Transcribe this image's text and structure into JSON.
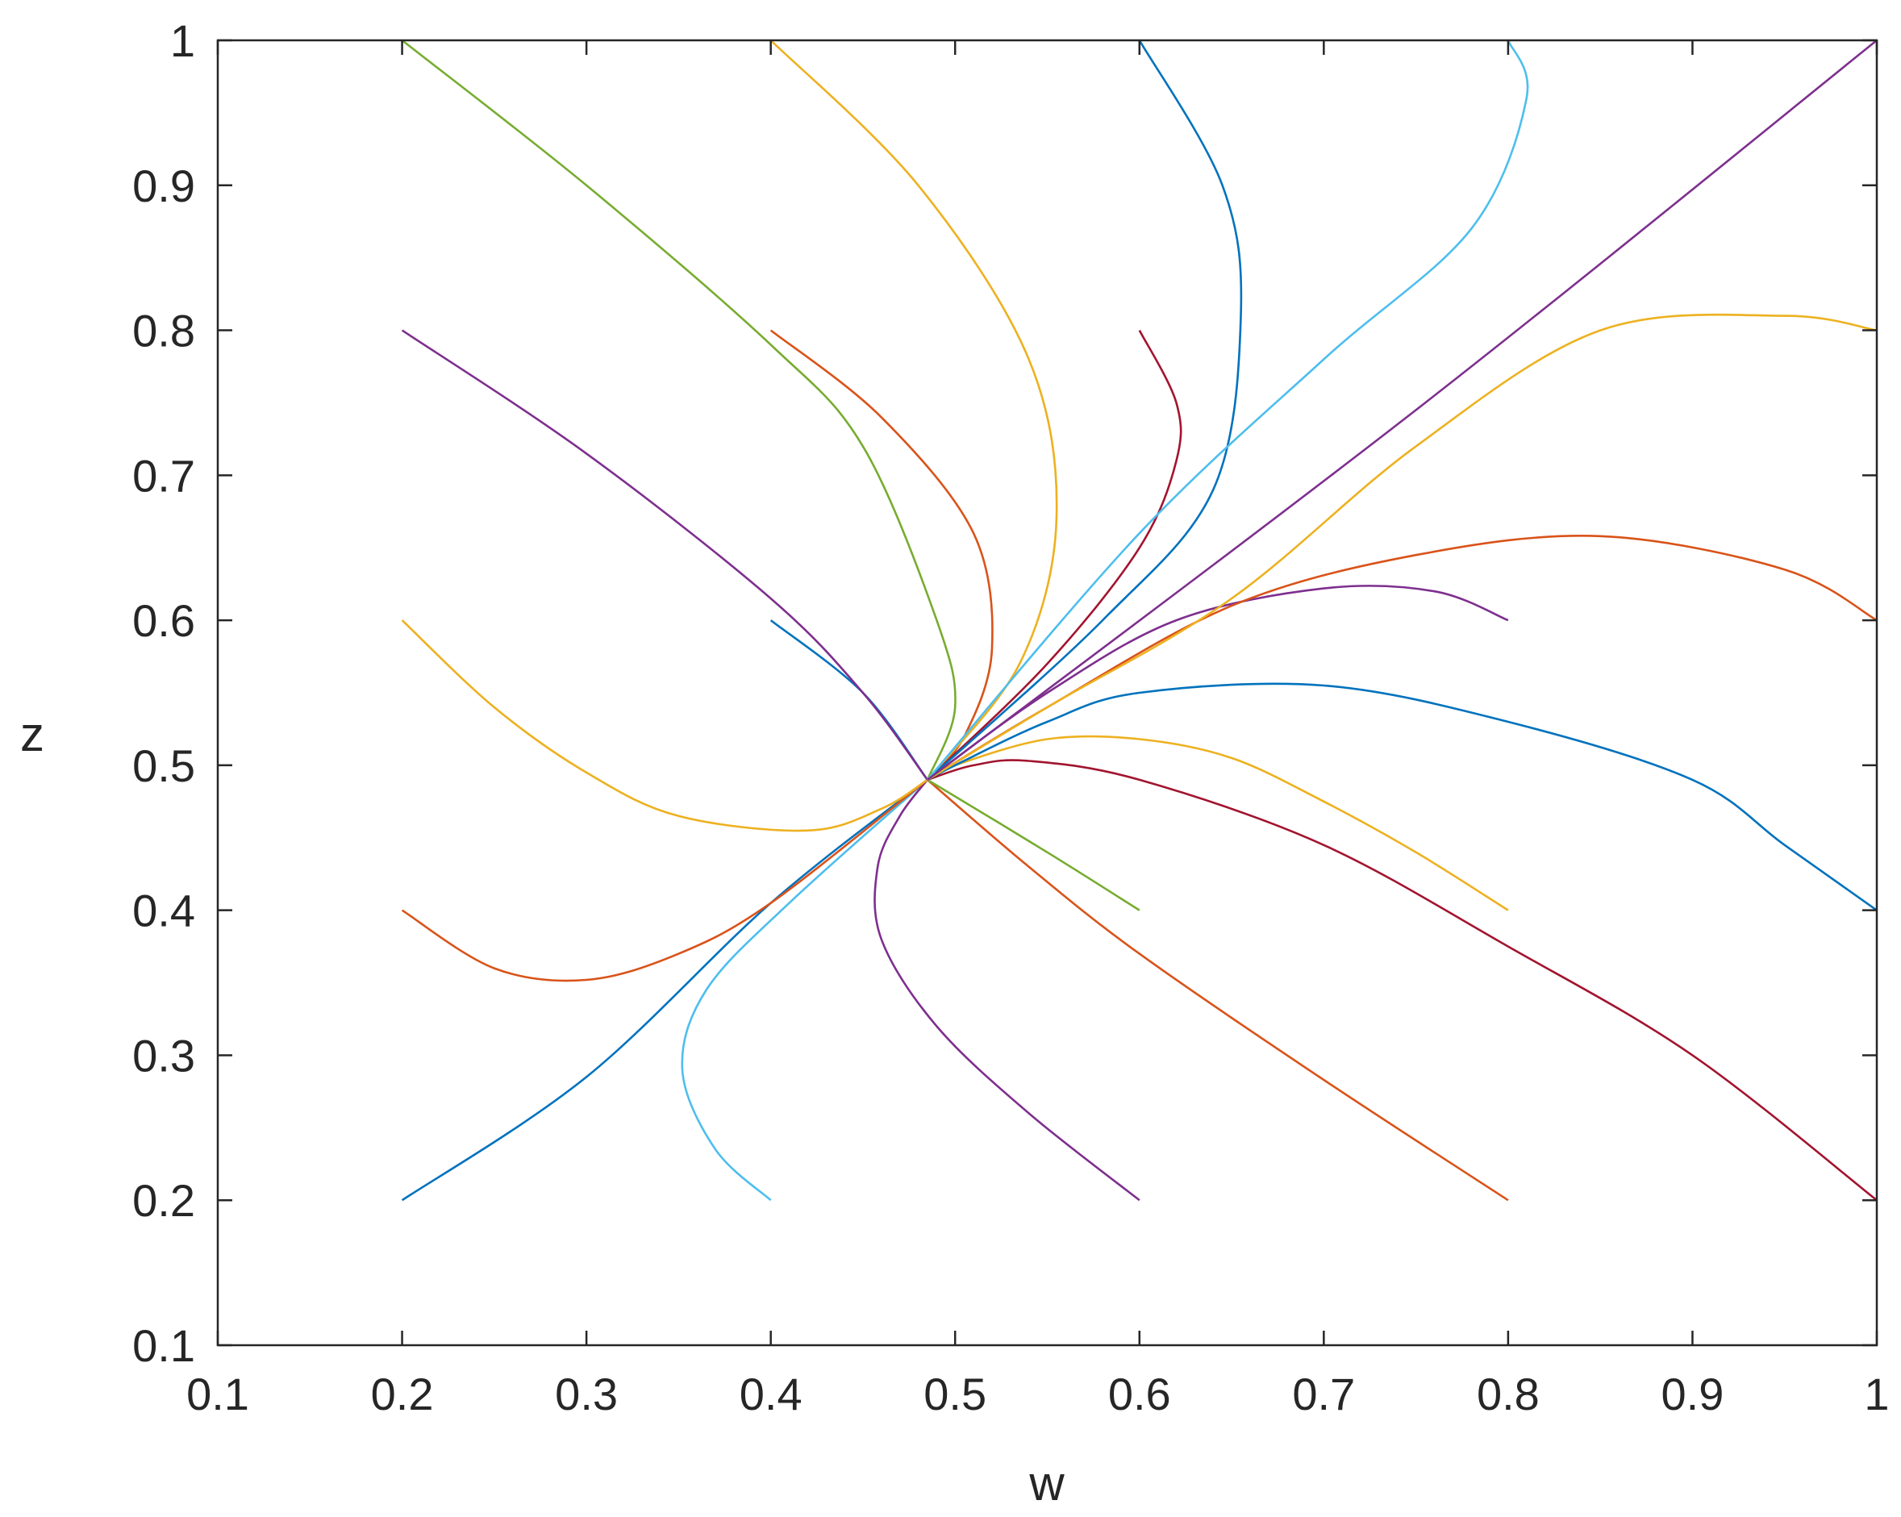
{
  "chart_data": {
    "type": "line",
    "title": "",
    "xlabel": "w",
    "ylabel": "z",
    "xlim": [
      0.1,
      1
    ],
    "ylim": [
      0.1,
      1
    ],
    "xticks": [
      "0.1",
      "0.2",
      "0.3",
      "0.4",
      "0.5",
      "0.6",
      "0.7",
      "0.8",
      "0.9",
      "1"
    ],
    "yticks": [
      "0.1",
      "0.2",
      "0.3",
      "0.4",
      "0.5",
      "0.6",
      "0.7",
      "0.8",
      "0.9",
      "1"
    ],
    "grid": false,
    "legend": "none",
    "series": [
      {
        "color": "#0072BD",
        "points": [
          [
            0.2,
            0.2
          ],
          [
            0.3,
            0.285
          ],
          [
            0.4,
            0.405
          ],
          [
            0.485,
            0.49
          ]
        ]
      },
      {
        "color": "#4DBEEE",
        "points": [
          [
            0.4,
            0.2
          ],
          [
            0.37,
            0.235
          ],
          [
            0.352,
            0.29
          ],
          [
            0.365,
            0.345
          ],
          [
            0.41,
            0.405
          ],
          [
            0.485,
            0.49
          ]
        ]
      },
      {
        "color": "#7E2F8E",
        "points": [
          [
            0.6,
            0.2
          ],
          [
            0.54,
            0.26
          ],
          [
            0.49,
            0.32
          ],
          [
            0.46,
            0.38
          ],
          [
            0.458,
            0.43
          ],
          [
            0.47,
            0.465
          ],
          [
            0.485,
            0.49
          ]
        ]
      },
      {
        "color": "#D95319",
        "points": [
          [
            0.8,
            0.2
          ],
          [
            0.7,
            0.283
          ],
          [
            0.6,
            0.37
          ],
          [
            0.54,
            0.43
          ],
          [
            0.485,
            0.49
          ]
        ]
      },
      {
        "color": "#A2142F",
        "points": [
          [
            1,
            0.2
          ],
          [
            0.9,
            0.3
          ],
          [
            0.8,
            0.375
          ],
          [
            0.7,
            0.445
          ],
          [
            0.6,
            0.49
          ],
          [
            0.54,
            0.503
          ],
          [
            0.51,
            0.5
          ],
          [
            0.485,
            0.49
          ]
        ]
      },
      {
        "color": "#D95319",
        "points": [
          [
            0.2,
            0.4
          ],
          [
            0.25,
            0.36
          ],
          [
            0.3,
            0.352
          ],
          [
            0.35,
            0.37
          ],
          [
            0.4,
            0.405
          ],
          [
            0.485,
            0.49
          ]
        ]
      },
      {
        "color": "#77AC30",
        "points": [
          [
            0.6,
            0.4
          ],
          [
            0.55,
            0.44
          ],
          [
            0.485,
            0.49
          ]
        ]
      },
      {
        "color": "#EDB120",
        "points": [
          [
            0.8,
            0.4
          ],
          [
            0.75,
            0.44
          ],
          [
            0.7,
            0.475
          ],
          [
            0.65,
            0.505
          ],
          [
            0.6,
            0.518
          ],
          [
            0.55,
            0.518
          ],
          [
            0.5,
            0.5
          ],
          [
            0.485,
            0.49
          ]
        ]
      },
      {
        "color": "#0072BD",
        "points": [
          [
            1,
            0.4
          ],
          [
            0.95,
            0.445
          ],
          [
            0.9,
            0.49
          ],
          [
            0.8,
            0.53
          ],
          [
            0.7,
            0.555
          ],
          [
            0.6,
            0.55
          ],
          [
            0.55,
            0.53
          ],
          [
            0.5,
            0.5
          ],
          [
            0.485,
            0.49
          ]
        ]
      },
      {
        "color": "#EDB120",
        "points": [
          [
            0.2,
            0.6
          ],
          [
            0.25,
            0.54
          ],
          [
            0.3,
            0.495
          ],
          [
            0.35,
            0.465
          ],
          [
            0.42,
            0.455
          ],
          [
            0.46,
            0.47
          ],
          [
            0.485,
            0.49
          ]
        ]
      },
      {
        "color": "#0072BD",
        "points": [
          [
            0.4,
            0.6
          ],
          [
            0.45,
            0.55
          ],
          [
            0.485,
            0.49
          ]
        ]
      },
      {
        "color": "#7E2F8E",
        "points": [
          [
            0.8,
            0.6
          ],
          [
            0.76,
            0.62
          ],
          [
            0.7,
            0.622
          ],
          [
            0.62,
            0.6
          ],
          [
            0.55,
            0.55
          ],
          [
            0.485,
            0.49
          ]
        ]
      },
      {
        "color": "#D95319",
        "points": [
          [
            1,
            0.6
          ],
          [
            0.95,
            0.635
          ],
          [
            0.85,
            0.658
          ],
          [
            0.75,
            0.645
          ],
          [
            0.65,
            0.61
          ],
          [
            0.55,
            0.54
          ],
          [
            0.485,
            0.49
          ]
        ]
      },
      {
        "color": "#7E2F8E",
        "points": [
          [
            0.2,
            0.8
          ],
          [
            0.3,
            0.715
          ],
          [
            0.4,
            0.615
          ],
          [
            0.45,
            0.55
          ],
          [
            0.485,
            0.49
          ]
        ]
      },
      {
        "color": "#D95319",
        "points": [
          [
            0.4,
            0.8
          ],
          [
            0.46,
            0.74
          ],
          [
            0.51,
            0.66
          ],
          [
            0.52,
            0.58
          ],
          [
            0.505,
            0.52
          ],
          [
            0.485,
            0.49
          ]
        ]
      },
      {
        "color": "#A2142F",
        "points": [
          [
            0.6,
            0.8
          ],
          [
            0.62,
            0.75
          ],
          [
            0.62,
            0.71
          ],
          [
            0.6,
            0.65
          ],
          [
            0.55,
            0.57
          ],
          [
            0.485,
            0.49
          ]
        ]
      },
      {
        "color": "#EDB120",
        "points": [
          [
            1,
            0.8
          ],
          [
            0.95,
            0.81
          ],
          [
            0.85,
            0.8
          ],
          [
            0.75,
            0.72
          ],
          [
            0.65,
            0.615
          ],
          [
            0.55,
            0.54
          ],
          [
            0.485,
            0.49
          ]
        ]
      },
      {
        "color": "#77AC30",
        "points": [
          [
            0.2,
            1
          ],
          [
            0.3,
            0.9
          ],
          [
            0.4,
            0.79
          ],
          [
            0.45,
            0.72
          ],
          [
            0.49,
            0.6
          ],
          [
            0.5,
            0.54
          ],
          [
            0.485,
            0.49
          ]
        ]
      },
      {
        "color": "#EDB120",
        "points": [
          [
            0.4,
            1
          ],
          [
            0.48,
            0.9
          ],
          [
            0.54,
            0.78
          ],
          [
            0.555,
            0.67
          ],
          [
            0.535,
            0.57
          ],
          [
            0.485,
            0.49
          ]
        ]
      },
      {
        "color": "#0072BD",
        "points": [
          [
            0.6,
            1
          ],
          [
            0.645,
            0.9
          ],
          [
            0.655,
            0.81
          ],
          [
            0.64,
            0.69
          ],
          [
            0.58,
            0.6
          ],
          [
            0.485,
            0.49
          ]
        ]
      },
      {
        "color": "#4DBEEE",
        "points": [
          [
            0.8,
            1
          ],
          [
            0.81,
            0.96
          ],
          [
            0.78,
            0.87
          ],
          [
            0.7,
            0.78
          ],
          [
            0.6,
            0.66
          ],
          [
            0.485,
            0.49
          ]
        ]
      },
      {
        "color": "#7E2F8E",
        "points": [
          [
            1,
            1
          ],
          [
            0.75,
            0.745
          ],
          [
            0.485,
            0.49
          ]
        ]
      }
    ]
  }
}
